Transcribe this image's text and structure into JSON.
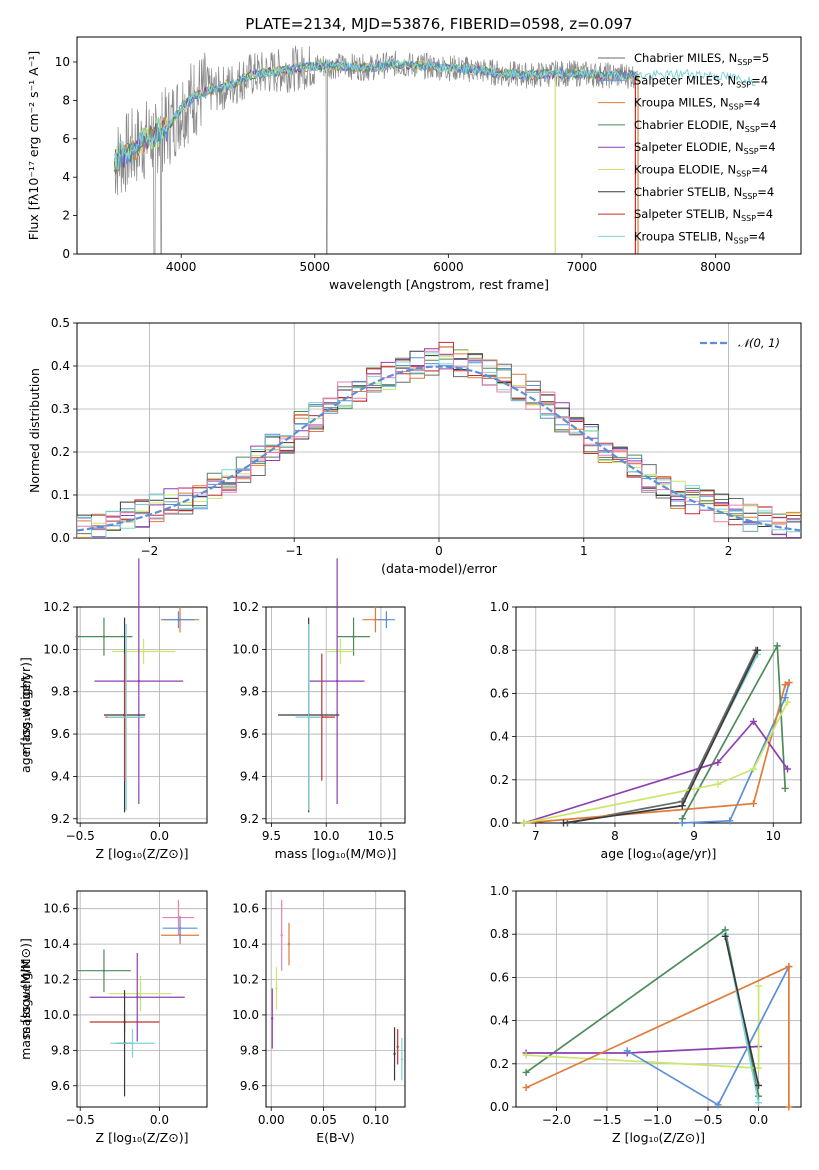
{
  "colors": {
    "Chabrier MILES": "#6b6b6b",
    "Salpeter MILES": "#5b8fd9",
    "Kroupa MILES": "#e07b39",
    "Chabrier ELODIE": "#4f8a5a",
    "Salpeter ELODIE": "#8e3fb0",
    "Kroupa ELODIE": "#c9e86a",
    "Chabrier STELIB": "#3a3a3a",
    "Salpeter STELIB": "#c0302e",
    "Kroupa STELIB": "#7fd3d8",
    "hist_extra": "#e880b0",
    "normal": "#5b8fd9"
  },
  "chart_data": [
    {
      "type": "line",
      "title": "PLATE=2134, MJD=53876, FIBERID=0598, z=0.097",
      "xlabel": "wavelength [Angstrom, rest frame]",
      "ylabel": "Flux [fλ10⁻¹⁷ erg cm⁻² s⁻¹ A⁻¹]",
      "xlim": [
        3220,
        8640
      ],
      "ylim": [
        0,
        11.3
      ],
      "xticks": [
        "4000",
        "5000",
        "6000",
        "7000",
        "8000"
      ],
      "yticks": [
        "0",
        "2",
        "4",
        "6",
        "8",
        "10"
      ],
      "grid": false,
      "legend_position": "upper right",
      "series": [
        {
          "name": "Chabrier MILES, N",
          "sub": "SSP",
          "suffix": "=5"
        },
        {
          "name": "Salpeter MILES, N",
          "sub": "SSP",
          "suffix": "=4"
        },
        {
          "name": "Kroupa MILES, N",
          "sub": "SSP",
          "suffix": "=4"
        },
        {
          "name": "Chabrier ELODIE, N",
          "sub": "SSP",
          "suffix": "=4"
        },
        {
          "name": "Salpeter ELODIE, N",
          "sub": "SSP",
          "suffix": "=4"
        },
        {
          "name": "Kroupa ELODIE, N",
          "sub": "SSP",
          "suffix": "=4"
        },
        {
          "name": "Chabrier STELIB, N",
          "sub": "SSP",
          "suffix": "=4"
        },
        {
          "name": "Salpeter STELIB, N",
          "sub": "SSP",
          "suffix": "=4"
        },
        {
          "name": "Kroupa STELIB, N",
          "sub": "SSP",
          "suffix": "=4"
        }
      ],
      "continuum": {
        "x": [
          3500,
          3600,
          3700,
          3800,
          3900,
          4000,
          4100,
          4200,
          4300,
          4400,
          4500,
          4600,
          4700,
          4800,
          5000,
          5200,
          5400,
          5600,
          5800,
          6000,
          6200,
          6400,
          6600,
          6800,
          7000,
          7200,
          7400,
          7600,
          7800,
          8000,
          8200,
          8300
        ],
        "y": [
          4.8,
          5.3,
          5.8,
          6.2,
          6.6,
          7.6,
          8.2,
          8.5,
          8.6,
          8.9,
          9.3,
          9.4,
          9.5,
          9.6,
          9.8,
          9.8,
          9.7,
          9.9,
          9.8,
          9.7,
          9.6,
          9.4,
          9.3,
          9.4,
          9.4,
          9.3,
          9.3,
          9.3,
          9.4,
          9.3,
          9.1,
          9.0
        ]
      }
    },
    {
      "type": "bar",
      "xlabel": "(data-model)/error",
      "ylabel": "Normed distribution",
      "xlim": [
        -2.5,
        2.5
      ],
      "ylim": [
        0,
        0.5
      ],
      "xticks": [
        "−2",
        "−1",
        "0",
        "1",
        "2"
      ],
      "yticks": [
        "0.0",
        "0.1",
        "0.2",
        "0.3",
        "0.4",
        "0.5"
      ],
      "grid": true,
      "legend_position": "upper right",
      "legend": "𝒩(0, 1)",
      "bin_width": 0.1,
      "mean_values": [
        0.02,
        0.03,
        0.05,
        0.05,
        0.06,
        0.07,
        0.08,
        0.09,
        0.1,
        0.12,
        0.14,
        0.16,
        0.18,
        0.21,
        0.23,
        0.26,
        0.28,
        0.3,
        0.33,
        0.35,
        0.37,
        0.38,
        0.39,
        0.4,
        0.41,
        0.42,
        0.41,
        0.4,
        0.39,
        0.37,
        0.35,
        0.33,
        0.31,
        0.28,
        0.26,
        0.23,
        0.21,
        0.18,
        0.16,
        0.14,
        0.12,
        0.1,
        0.09,
        0.08,
        0.07,
        0.06,
        0.05,
        0.05,
        0.04,
        0.03
      ]
    },
    {
      "type": "scatter",
      "xlabel": "Z [log₁₀(Z/Z⊙)]",
      "ylabel": "age  [log₁₀(age/yr)]",
      "xlim": [
        -0.52,
        0.3
      ],
      "ylim": [
        9.18,
        10.2
      ],
      "xticks": [
        "−0.5",
        "0.0"
      ],
      "yticks": [
        "9.2",
        "9.4",
        "9.6",
        "9.8",
        "10.0",
        "10.2"
      ],
      "grid": true,
      "points": [
        {
          "s": "Kroupa MILES",
          "x": 0.13,
          "y": 10.14,
          "xerr": 0.12,
          "yerr": 0.06
        },
        {
          "s": "Salpeter MILES",
          "x": 0.12,
          "y": 10.14,
          "xerr": 0.1,
          "yerr": 0.04
        },
        {
          "s": "Chabrier ELODIE",
          "x": -0.35,
          "y": 10.06,
          "xerr": 0.18,
          "yerr": 0.09
        },
        {
          "s": "Kroupa ELODIE",
          "x": -0.1,
          "y": 9.99,
          "xerr": 0.2,
          "yerr": 0.06
        },
        {
          "s": "Salpeter ELODIE",
          "x": -0.13,
          "y": 9.85,
          "xerr": 0.28,
          "yerr": 0.58
        },
        {
          "s": "Chabrier STELIB",
          "x": -0.22,
          "y": 9.69,
          "xerr": 0.13,
          "yerr": 0.46
        },
        {
          "s": "Salpeter STELIB",
          "x": -0.22,
          "y": 9.68,
          "xerr": 0.12,
          "yerr": 0.3
        },
        {
          "s": "Kroupa STELIB",
          "x": -0.21,
          "y": 9.68,
          "xerr": 0.12,
          "yerr": 0.44
        }
      ]
    },
    {
      "type": "scatter",
      "xlabel": "mass [log₁₀(M/M⊙)]",
      "ylabel": "",
      "xlim": [
        9.45,
        10.72
      ],
      "ylim": [
        9.18,
        10.2
      ],
      "xticks": [
        "9.5",
        "10.0",
        "10.5"
      ],
      "yticks": [
        "9.2",
        "9.4",
        "9.6",
        "9.8",
        "10.0",
        "10.2"
      ],
      "grid": true,
      "points": [
        {
          "s": "Kroupa MILES",
          "x": 10.45,
          "y": 10.14,
          "xerr": 0.12,
          "yerr": 0.06
        },
        {
          "s": "Salpeter MILES",
          "x": 10.55,
          "y": 10.14,
          "xerr": 0.08,
          "yerr": 0.04
        },
        {
          "s": "Chabrier ELODIE",
          "x": 10.25,
          "y": 10.06,
          "xerr": 0.15,
          "yerr": 0.09
        },
        {
          "s": "Kroupa ELODIE",
          "x": 10.13,
          "y": 9.99,
          "xerr": 0.12,
          "yerr": 0.06
        },
        {
          "s": "Salpeter ELODIE",
          "x": 10.1,
          "y": 9.85,
          "xerr": 0.25,
          "yerr": 0.58
        },
        {
          "s": "Chabrier STELIB",
          "x": 9.84,
          "y": 9.69,
          "xerr": 0.28,
          "yerr": 0.46
        },
        {
          "s": "Salpeter STELIB",
          "x": 9.96,
          "y": 9.68,
          "xerr": 0.12,
          "yerr": 0.3
        },
        {
          "s": "Kroupa STELIB",
          "x": 9.84,
          "y": 9.68,
          "xerr": 0.12,
          "yerr": 0.44
        }
      ]
    },
    {
      "type": "line",
      "xlabel": "age  [log₁₀(age/yr)]",
      "ylabel": "mass weight",
      "xlim": [
        6.75,
        10.35
      ],
      "ylim": [
        0,
        1
      ],
      "xticks": [
        "7",
        "8",
        "9",
        "10"
      ],
      "yticks": [
        "0.0",
        "0.2",
        "0.4",
        "0.6",
        "0.8",
        "1.0"
      ],
      "grid": true,
      "series": [
        {
          "s": "Kroupa STELIB",
          "x": [
            7.4,
            8.85,
            9.8
          ],
          "y": [
            0.0,
            0.1,
            0.78
          ]
        },
        {
          "s": "Chabrier MILES",
          "x": [
            7.4,
            8.85,
            9.78
          ],
          "y": [
            0.0,
            0.1,
            0.8
          ]
        },
        {
          "s": "Salpeter MILES",
          "x": [
            8.85,
            9.45,
            10.15,
            10.2
          ],
          "y": [
            0.0,
            0.01,
            0.58,
            0.65
          ]
        },
        {
          "s": "Kroupa MILES",
          "x": [
            6.85,
            9.75,
            10.15,
            10.2
          ],
          "y": [
            0.0,
            0.09,
            0.64,
            0.65
          ]
        },
        {
          "s": "Chabrier ELODIE",
          "x": [
            8.85,
            10.05,
            10.15
          ],
          "y": [
            0.02,
            0.82,
            0.16
          ]
        },
        {
          "s": "Salpeter ELODIE",
          "x": [
            6.85,
            9.3,
            9.75,
            10.18
          ],
          "y": [
            0.0,
            0.28,
            0.47,
            0.25
          ]
        },
        {
          "s": "Kroupa ELODIE",
          "x": [
            6.85,
            9.3,
            9.75,
            10.18
          ],
          "y": [
            0.0,
            0.18,
            0.25,
            0.56
          ]
        },
        {
          "s": "Chabrier STELIB",
          "x": [
            7.35,
            8.85,
            9.8
          ],
          "y": [
            0.0,
            0.08,
            0.8
          ]
        }
      ]
    },
    {
      "type": "scatter",
      "xlabel": "Z [log₁₀(Z/Z⊙)]",
      "ylabel": "mass [log₁₀(M/M⊙)]",
      "xlim": [
        -0.52,
        0.3
      ],
      "ylim": [
        9.48,
        10.7
      ],
      "xticks": [
        "−0.5",
        "0.0"
      ],
      "yticks": [
        "9.6",
        "9.8",
        "10.0",
        "10.2",
        "10.4",
        "10.6"
      ],
      "grid": true,
      "points": [
        {
          "s": "Kroupa MILES",
          "x": 0.13,
          "y": 10.45,
          "xerr": 0.12,
          "yerr": 0.05
        },
        {
          "s": "Salpeter MILES",
          "x": 0.13,
          "y": 10.49,
          "xerr": 0.11,
          "yerr": 0.07
        },
        {
          "s": "hist_extra",
          "x": 0.12,
          "y": 10.55,
          "xerr": 0.1,
          "yerr": 0.1
        },
        {
          "s": "Chabrier ELODIE",
          "x": -0.35,
          "y": 10.25,
          "xerr": 0.17,
          "yerr": 0.12
        },
        {
          "s": "Kroupa ELODIE",
          "x": -0.12,
          "y": 10.12,
          "xerr": 0.2,
          "yerr": 0.1
        },
        {
          "s": "Salpeter ELODIE",
          "x": -0.14,
          "y": 10.1,
          "xerr": 0.3,
          "yerr": 0.25
        },
        {
          "s": "Salpeter STELIB",
          "x": -0.22,
          "y": 9.96,
          "xerr": 0.22,
          "yerr": 0.06
        },
        {
          "s": "Chabrier STELIB",
          "x": -0.22,
          "y": 9.84,
          "xerr": 0.05,
          "yerr": 0.3
        },
        {
          "s": "Kroupa STELIB",
          "x": -0.17,
          "y": 9.84,
          "xerr": 0.14,
          "yerr": 0.08
        }
      ]
    },
    {
      "type": "scatter",
      "xlabel": "E(B-V)",
      "ylabel": "",
      "xlim": [
        -0.005,
        0.128
      ],
      "ylim": [
        9.48,
        10.7
      ],
      "xticks": [
        "0.00",
        "0.05",
        "0.10"
      ],
      "yticks": [
        "9.6",
        "9.8",
        "10.0",
        "10.2",
        "10.4",
        "10.6"
      ],
      "grid": true,
      "points": [
        {
          "s": "Salpeter ELODIE",
          "x": 0.001,
          "y": 9.98,
          "xerr": 0.0,
          "yerr": 0.17
        },
        {
          "s": "Kroupa ELODIE",
          "x": 0.005,
          "y": 10.15,
          "xerr": 0.0,
          "yerr": 0.12
        },
        {
          "s": "hist_extra",
          "x": 0.01,
          "y": 10.45,
          "xerr": 0.0,
          "yerr": 0.2
        },
        {
          "s": "Kroupa MILES",
          "x": 0.017,
          "y": 10.4,
          "xerr": 0.0,
          "yerr": 0.12
        },
        {
          "s": "Chabrier STELIB",
          "x": 0.118,
          "y": 9.78,
          "xerr": 0.0,
          "yerr": 0.15
        },
        {
          "s": "Salpeter STELIB",
          "x": 0.121,
          "y": 9.82,
          "xerr": 0.0,
          "yerr": 0.1
        },
        {
          "s": "Kroupa STELIB",
          "x": 0.125,
          "y": 9.75,
          "xerr": 0.0,
          "yerr": 0.12
        }
      ]
    },
    {
      "type": "line",
      "xlabel": "Z [log₁₀(Z/Z⊙)]",
      "ylabel": "mass weight",
      "xlim": [
        -2.4,
        0.42
      ],
      "ylim": [
        0,
        1
      ],
      "xticks": [
        "−2.0",
        "−1.5",
        "−1.0",
        "−0.5",
        "0.0"
      ],
      "yticks": [
        "0.0",
        "0.2",
        "0.4",
        "0.6",
        "0.8",
        "1.0"
      ],
      "grid": true,
      "series": [
        {
          "s": "Chabrier ELODIE",
          "x": [
            -2.3,
            -0.33,
            0.0
          ],
          "y": [
            0.16,
            0.82,
            0.05
          ]
        },
        {
          "s": "Salpeter ELODIE",
          "x": [
            -2.3,
            -1.3,
            0.0
          ],
          "y": [
            0.25,
            0.25,
            0.28
          ]
        },
        {
          "s": "Kroupa ELODIE",
          "x": [
            -2.3,
            0.0,
            0.0
          ],
          "y": [
            0.24,
            0.18,
            0.56
          ]
        },
        {
          "s": "Salpeter MILES",
          "x": [
            -1.3,
            -0.4,
            0.3
          ],
          "y": [
            0.26,
            0.01,
            0.65
          ]
        },
        {
          "s": "Kroupa MILES",
          "x": [
            -2.3,
            0.3,
            0.3
          ],
          "y": [
            0.09,
            0.65,
            0.0
          ]
        },
        {
          "s": "Kroupa STELIB",
          "x": [
            -0.33,
            0.0
          ],
          "y": [
            0.8,
            0.02
          ]
        },
        {
          "s": "Chabrier STELIB",
          "x": [
            -0.33,
            0.0
          ],
          "y": [
            0.79,
            0.1
          ]
        }
      ]
    }
  ]
}
